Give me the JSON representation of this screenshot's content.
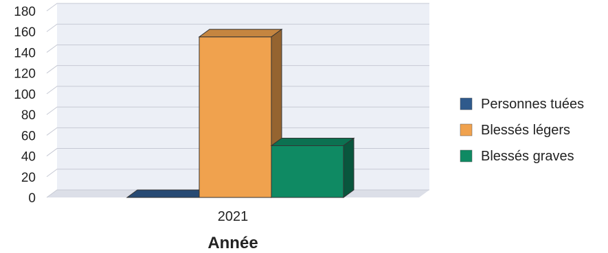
{
  "chart_data": {
    "type": "bar",
    "categories": [
      "2021"
    ],
    "series": [
      {
        "name": "Personnes tuées",
        "values": [
          0
        ],
        "color": "#2f5a8c"
      },
      {
        "name": "Blessés légers",
        "values": [
          155
        ],
        "color": "#f0a24e"
      },
      {
        "name": "Blessés graves",
        "values": [
          50
        ],
        "color": "#0f8a63"
      }
    ],
    "xlabel": "Année",
    "ylabel": "",
    "ylim": [
      0,
      180
    ],
    "yticks": [
      0,
      20,
      40,
      60,
      80,
      100,
      120,
      140,
      160,
      180
    ],
    "grid": true,
    "style": "3d",
    "legend_position": "right"
  }
}
